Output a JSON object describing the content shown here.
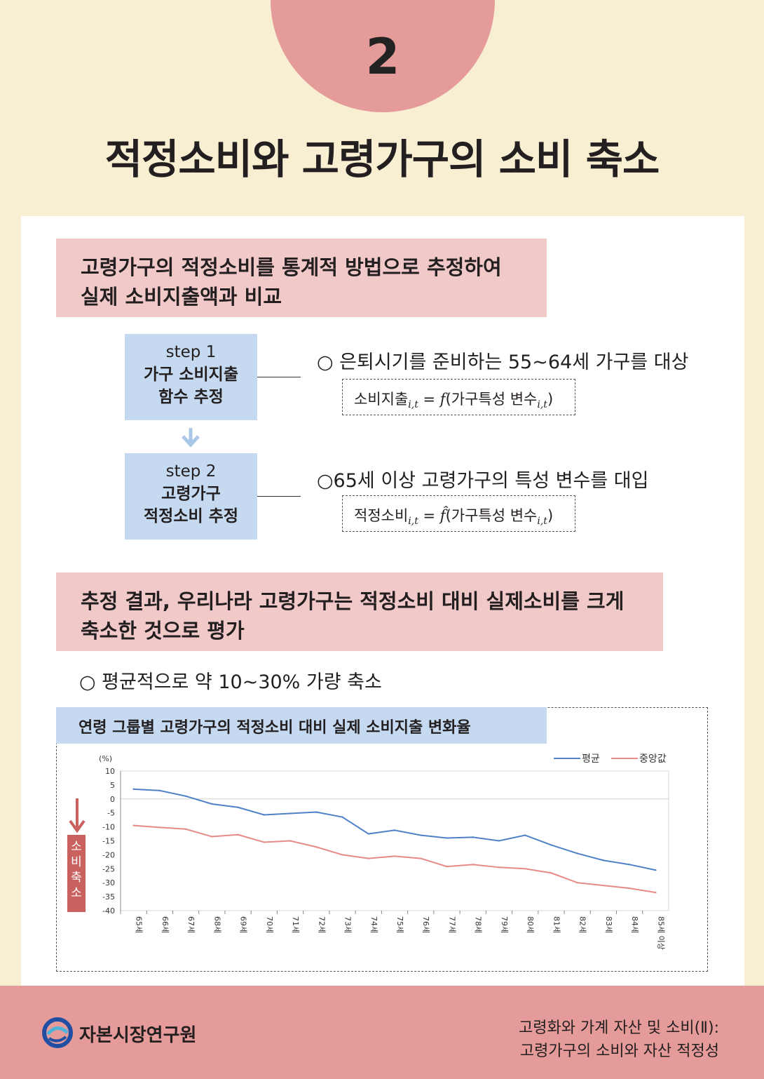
{
  "header": {
    "number": "2",
    "title": "적정소비와 고령가구의 소비 축소"
  },
  "section1": {
    "line1": "고령가구의 적정소비를 통계적 방법으로 추정하여",
    "line2": "실제 소비지출액과 비교"
  },
  "steps": [
    {
      "label": "step 1",
      "text1": "가구 소비지출",
      "text2": "함수 추정",
      "bullet": "○ 은퇴시기를 준비하는 55~64세 가구를 대상",
      "formula_lhs": "소비지출",
      "formula_sub": "i,t",
      "formula_eq": " = ",
      "formula_fn": "f",
      "formula_open": "(가구특성 변수",
      "formula_close": ")"
    },
    {
      "label": "step 2",
      "text1": "고령가구",
      "text2": "적정소비 추정",
      "bullet": "○65세 이상 고령가구의 특성 변수를 대입",
      "formula_lhs": "적정소비",
      "formula_sub": "i,t",
      "formula_eq": " = ",
      "formula_fn": "f̂",
      "formula_open": "(가구특성 변수",
      "formula_close": ")"
    }
  ],
  "section2": {
    "line1": "추정 결과, 우리나라 고령가구는 적정소비 대비 실제소비를 크게",
    "line2": "축소한 것으로 평가",
    "bullet": "○ 평균적으로 약 10~30% 가량 축소"
  },
  "shrink_label": [
    "소",
    "비",
    "축",
    "소"
  ],
  "chart_data": {
    "type": "line",
    "title": "연령 그룹별 고령가구의 적정소비 대비 실제 소비지출 변화율",
    "ylabel": "(%)",
    "ylim": [
      -40,
      10
    ],
    "yticks": [
      10,
      5,
      0,
      -5,
      -10,
      -15,
      -20,
      -25,
      -30,
      -35,
      -40
    ],
    "grid": false,
    "legend_position": "top-right",
    "categories": [
      "65세",
      "66세",
      "67세",
      "68세",
      "69세",
      "70세",
      "71세",
      "72세",
      "73세",
      "74세",
      "75세",
      "76세",
      "77세",
      "78세",
      "79세",
      "80세",
      "81세",
      "82세",
      "83세",
      "84세",
      "85세 이상"
    ],
    "series": [
      {
        "name": "평균",
        "color": "#4f81c7",
        "values": [
          3.5,
          3.0,
          1.0,
          -1.8,
          -3.0,
          -5.7,
          -5.2,
          -4.7,
          -6.5,
          -12.5,
          -11.2,
          -13.0,
          -14.0,
          -13.7,
          -15.0,
          -13.0,
          -16.5,
          -19.5,
          -22.0,
          -23.5,
          -25.5
        ]
      },
      {
        "name": "중앙값",
        "color": "#e68a87",
        "values": [
          -9.5,
          -10.2,
          -10.8,
          -13.5,
          -12.8,
          -15.5,
          -15.0,
          -17.2,
          -20.0,
          -21.3,
          -20.5,
          -21.3,
          -24.2,
          -23.5,
          -24.5,
          -25.0,
          -26.5,
          -30.0,
          -31.0,
          -32.0,
          -33.5
        ]
      }
    ]
  },
  "footer": {
    "org": "자본시장연구원",
    "line1": "고령화와 가계 자산 및 소비(Ⅱ):",
    "line2": "고령가구의 소비와 자산 적정성"
  }
}
